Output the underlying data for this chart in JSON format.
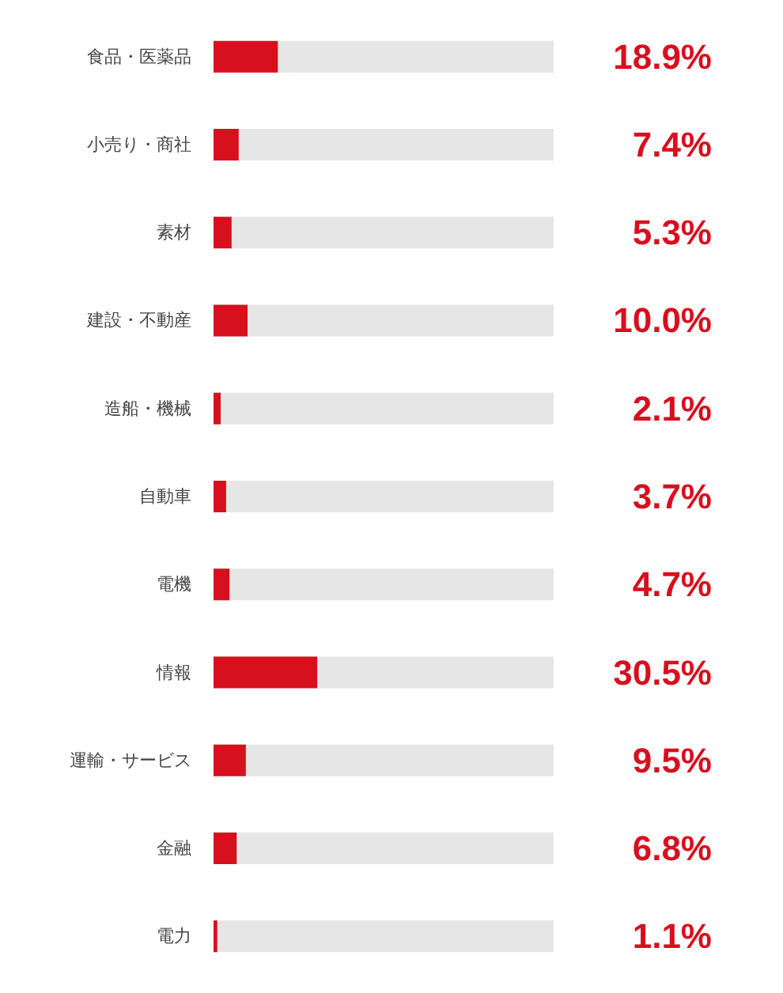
{
  "chart_data": {
    "type": "bar",
    "orientation": "horizontal",
    "categories": [
      "食品・医薬品",
      "小売り・商社",
      "素材",
      "建設・不動産",
      "造船・機械",
      "自動車",
      "電機",
      "情報",
      "運輸・サービス",
      "金融",
      "電力"
    ],
    "values": [
      18.9,
      7.4,
      5.3,
      10.0,
      2.1,
      3.7,
      4.7,
      30.5,
      9.5,
      6.8,
      1.1
    ],
    "value_labels": [
      "18.9%",
      "7.4%",
      "5.3%",
      "10.0%",
      "2.1%",
      "3.7%",
      "4.7%",
      "30.5%",
      "9.5%",
      "6.8%",
      "1.1%"
    ],
    "color": "#d7101e",
    "xlim": [
      0,
      100
    ],
    "tick_labels": "y"
  }
}
